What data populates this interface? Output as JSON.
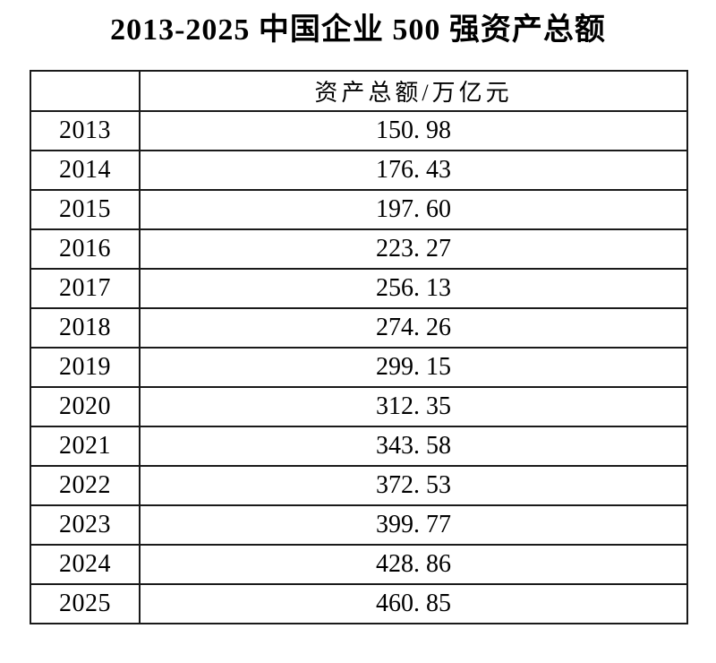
{
  "title": "2013-2025 中国企业 500 强资产总额",
  "table": {
    "corner_label": "",
    "value_header": "资产总额/万亿元",
    "rows": [
      {
        "year": "2013",
        "value": "150. 98"
      },
      {
        "year": "2014",
        "value": "176. 43"
      },
      {
        "year": "2015",
        "value": "197. 60"
      },
      {
        "year": "2016",
        "value": "223. 27"
      },
      {
        "year": "2017",
        "value": "256. 13"
      },
      {
        "year": "2018",
        "value": "274. 26"
      },
      {
        "year": "2019",
        "value": "299. 15"
      },
      {
        "year": "2020",
        "value": "312. 35"
      },
      {
        "year": "2021",
        "value": "343. 58"
      },
      {
        "year": "2022",
        "value": "372. 53"
      },
      {
        "year": "2023",
        "value": "399. 77"
      },
      {
        "year": "2024",
        "value": "428. 86"
      },
      {
        "year": "2025",
        "value": "460. 85"
      }
    ]
  },
  "colors": {
    "text": "#000000",
    "border": "#1a1a1a",
    "background": "#ffffff"
  },
  "chart_data": {
    "type": "table",
    "title": "2013-2025 中国企业 500 强资产总额",
    "columns": [
      "",
      "资产总额/万亿元"
    ],
    "years": [
      2013,
      2014,
      2015,
      2016,
      2017,
      2018,
      2019,
      2020,
      2021,
      2022,
      2023,
      2024,
      2025
    ],
    "values": [
      150.98,
      176.43,
      197.6,
      223.27,
      256.13,
      274.26,
      299.15,
      312.35,
      343.58,
      372.53,
      399.77,
      428.86,
      460.85
    ],
    "unit": "万亿元"
  }
}
